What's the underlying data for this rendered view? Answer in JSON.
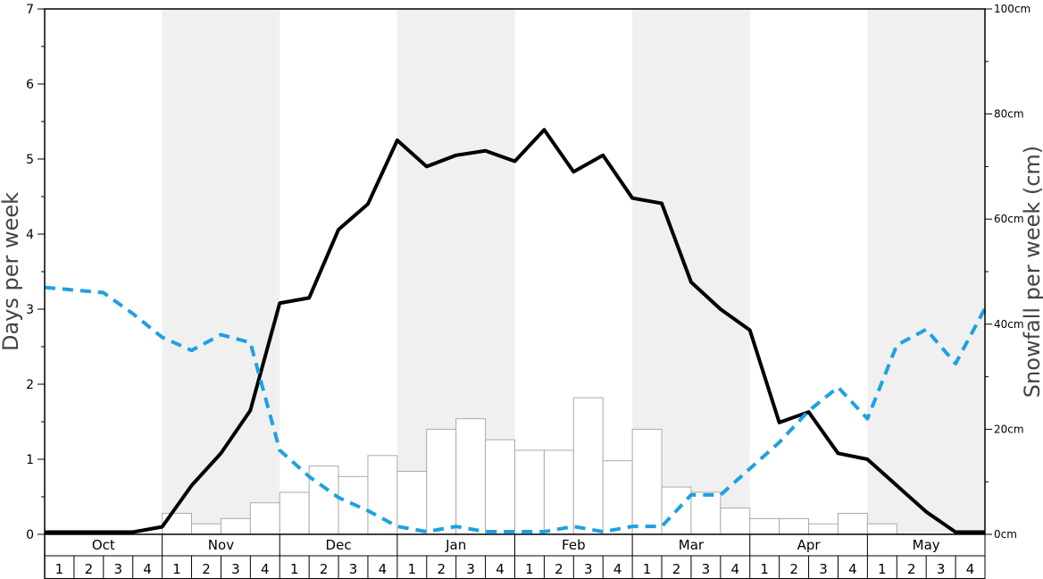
{
  "chart_data": {
    "type": "bar",
    "left_axis": {
      "label": "Days per week",
      "ylim": [
        0,
        7
      ],
      "ticks": [
        0,
        1,
        2,
        3,
        4,
        5,
        6,
        7
      ]
    },
    "right_axis": {
      "label": "Snowfall per week (cm)",
      "ylim": [
        0,
        100
      ],
      "ticks": [
        "0cm",
        "20cm",
        "40cm",
        "60cm",
        "80cm",
        "100cm"
      ]
    },
    "months": [
      "Oct",
      "Nov",
      "Dec",
      "Jan",
      "Feb",
      "Mar",
      "Apr",
      "May"
    ],
    "weeks": [
      "1",
      "2",
      "3",
      "4"
    ],
    "shaded_months": [
      "Nov",
      "Jan",
      "Mar",
      "May"
    ],
    "series": [
      {
        "kind": "bar",
        "axis": "right",
        "color": "#ffffff",
        "stroke": "#aaaaaa",
        "values": [
          0,
          0,
          0,
          0,
          4,
          2,
          3,
          6,
          8,
          13,
          11,
          15,
          12,
          20,
          22,
          18,
          16,
          16,
          26,
          14,
          20,
          9,
          8,
          5,
          3,
          3,
          2,
          4,
          2,
          0,
          0,
          0
        ]
      },
      {
        "kind": "line",
        "axis": "left",
        "color": "#000000",
        "dashed": false,
        "values": [
          0.03,
          0.03,
          0.03,
          0.03,
          0.1,
          0.65,
          1.08,
          1.65,
          3.08,
          3.15,
          4.06,
          4.4,
          5.25,
          4.9,
          5.05,
          5.11,
          4.97,
          5.39,
          4.83,
          5.05,
          4.48,
          4.41,
          3.36,
          3.0,
          2.72,
          1.49,
          1.63,
          1.08,
          1.0,
          0.65,
          0.3,
          0.03,
          0.03
        ]
      },
      {
        "kind": "line",
        "axis": "right",
        "color": "#1da1e2",
        "dashed": true,
        "values": [
          47,
          46.5,
          46,
          42,
          37.5,
          35,
          38,
          36.5,
          16,
          11,
          7,
          4.5,
          1.5,
          0.5,
          1.5,
          0.5,
          0.5,
          0.5,
          1.5,
          0.5,
          1.5,
          1.5,
          7.5,
          7.5,
          12.5,
          17.5,
          23.5,
          28,
          22,
          36,
          39,
          32.5,
          43
        ]
      }
    ]
  }
}
